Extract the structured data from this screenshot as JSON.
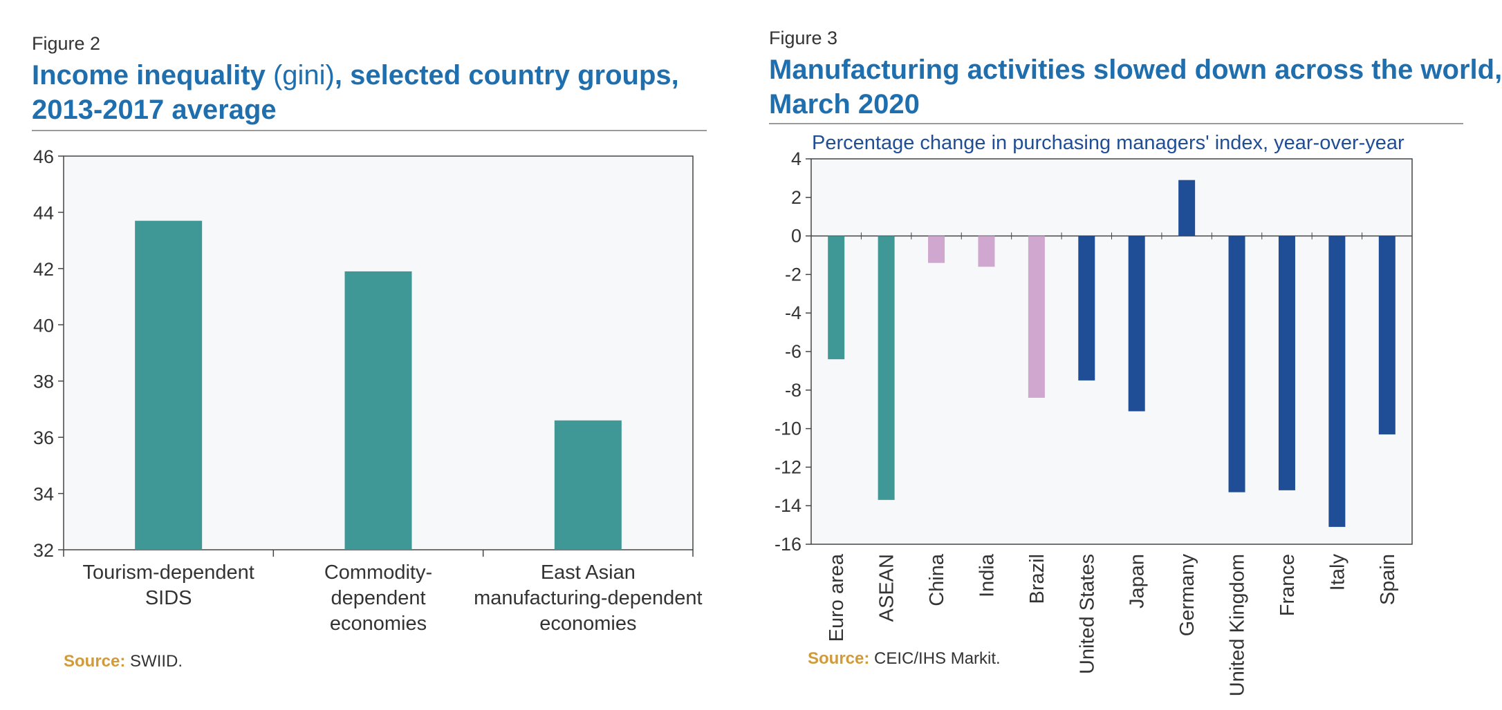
{
  "figures": {
    "left": {
      "label": "Figure 2",
      "title_strong_1": "Income inequality",
      "title_light": " (gini)",
      "title_strong_2": ", selected country groups,",
      "title_line2": "2013-2017 average",
      "source_key": "Source:",
      "source_text": " SWIID."
    },
    "right": {
      "label": "Figure 3",
      "title_line1": "Manufacturing activities slowed down across the world,",
      "title_line2": "March 2020",
      "subtitle": "Percentage change in purchasing managers' index, year-over-year",
      "source_key": "Source:",
      "source_text": " CEIC/IHS Markit."
    }
  },
  "chart_data": [
    {
      "type": "bar",
      "title": "Income inequality (gini), selected country groups, 2013-2017 average",
      "categories": [
        [
          "Tourism-dependent",
          "SIDS"
        ],
        [
          "Commodity-",
          "dependent",
          "economies"
        ],
        [
          "East Asian",
          "manufacturing-dependent",
          "economies"
        ]
      ],
      "values": [
        43.7,
        41.9,
        36.6
      ],
      "ylim": [
        32,
        46
      ],
      "yticks": [
        32,
        34,
        36,
        38,
        40,
        42,
        44,
        46
      ],
      "grid": false,
      "colors": {
        "bar": "#3f9896",
        "plot_bg": "#f6f8fa",
        "axis": "#444444"
      }
    },
    {
      "type": "bar",
      "title": "Manufacturing activities slowed down across the world, March 2020",
      "subtitle": "Percentage change in purchasing managers' index, year-over-year",
      "categories": [
        "Euro area",
        "ASEAN",
        "China",
        "India",
        "Brazil",
        "United States",
        "Japan",
        "Germany",
        "United Kingdom",
        "France",
        "Italy",
        "Spain"
      ],
      "values": [
        -6.4,
        -13.7,
        -1.4,
        -1.6,
        -8.4,
        -7.5,
        -9.1,
        2.9,
        -13.3,
        -13.2,
        -15.1,
        -10.3
      ],
      "bar_colors": [
        "#3f9896",
        "#3f9896",
        "#cfa7cf",
        "#cfa7cf",
        "#cfa7cf",
        "#1f4e96",
        "#1f4e96",
        "#1f4e96",
        "#1f4e96",
        "#1f4e96",
        "#1f4e96",
        "#1f4e96"
      ],
      "ylim": [
        -16,
        4
      ],
      "yticks": [
        -16,
        -14,
        -12,
        -10,
        -8,
        -6,
        -4,
        -2,
        0,
        2,
        4
      ],
      "grid": false,
      "colors": {
        "plot_bg": "#f6f8fa",
        "axis": "#444444"
      }
    }
  ]
}
